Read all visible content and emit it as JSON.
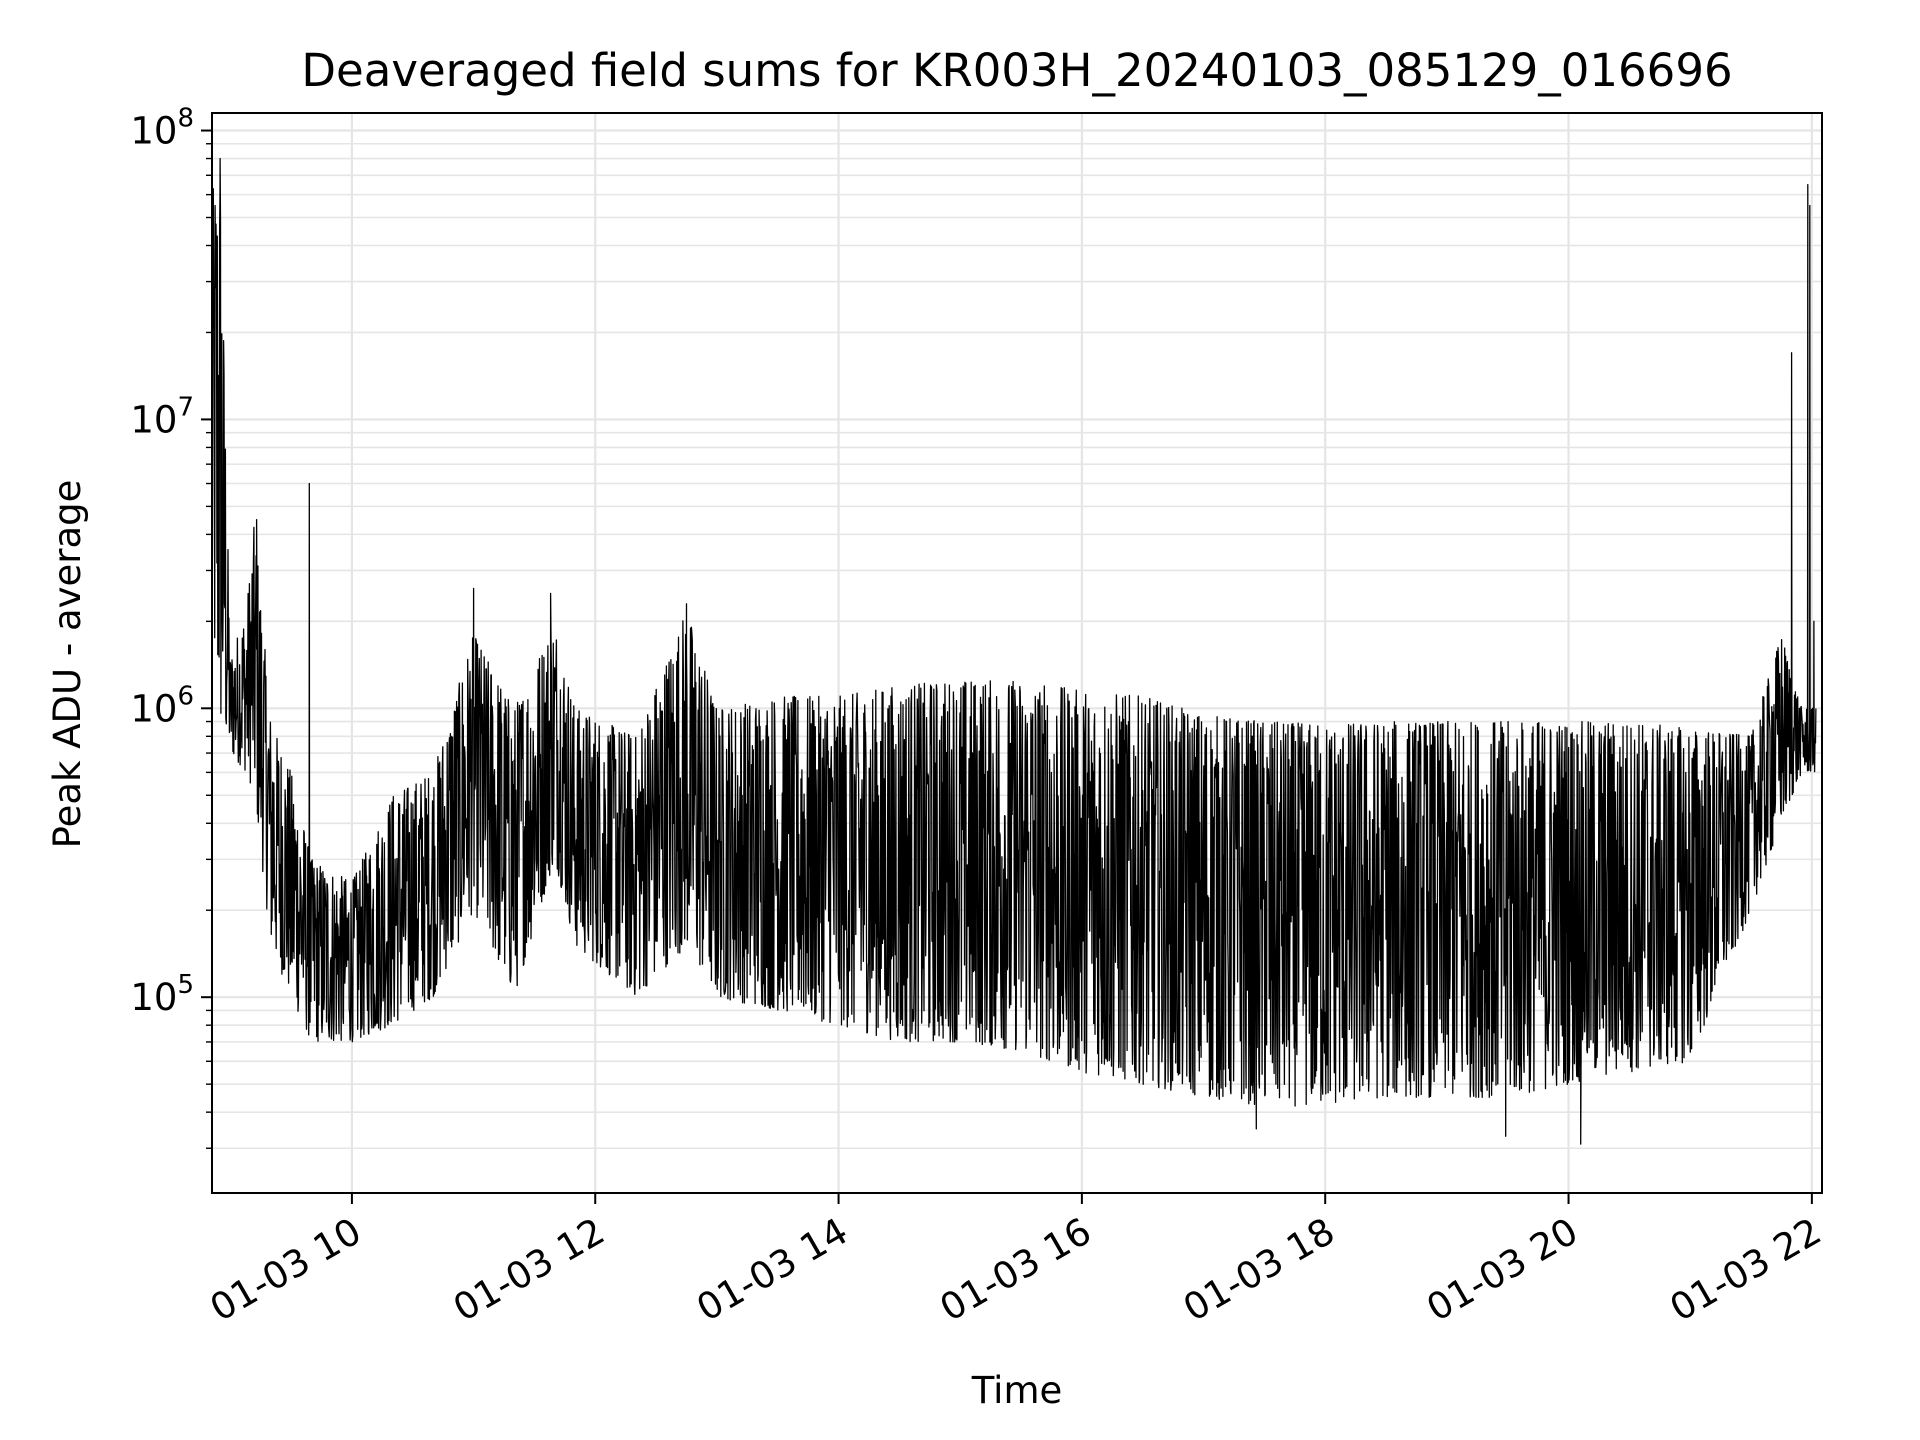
{
  "chart_data": {
    "type": "line",
    "title": "Deaveraged field sums for KR003H_20240103_085129_016696",
    "xlabel": "Time",
    "ylabel": "Peak ADU - average",
    "yscale": "log",
    "xlim": [
      "2024-01-03T08:51",
      "2024-01-03T22:05"
    ],
    "ylim": [
      21000,
      115000000
    ],
    "grid": true,
    "line_color": "#000000",
    "x_ticks": [
      {
        "value": "2024-01-03T10:00",
        "label": "01-03 10"
      },
      {
        "value": "2024-01-03T12:00",
        "label": "01-03 12"
      },
      {
        "value": "2024-01-03T14:00",
        "label": "01-03 14"
      },
      {
        "value": "2024-01-03T16:00",
        "label": "01-03 16"
      },
      {
        "value": "2024-01-03T18:00",
        "label": "01-03 18"
      },
      {
        "value": "2024-01-03T20:00",
        "label": "01-03 20"
      },
      {
        "value": "2024-01-03T22:00",
        "label": "01-03 22"
      }
    ],
    "y_ticks": [
      {
        "value": 100000,
        "base": "10",
        "exp": "5"
      },
      {
        "value": 1000000,
        "base": "10",
        "exp": "6"
      },
      {
        "value": 10000000,
        "base": "10",
        "exp": "7"
      },
      {
        "value": 100000000,
        "base": "10",
        "exp": "8"
      }
    ],
    "series": [
      {
        "envelope": [
          {
            "x": "2024-01-03T08:51",
            "low": 1500000,
            "high": 60000000
          },
          {
            "x": "2024-01-03T08:55",
            "low": 800000,
            "high": 80000000
          },
          {
            "x": "2024-01-03T09:00",
            "low": 700000,
            "high": 1500000
          },
          {
            "x": "2024-01-03T09:08",
            "low": 600000,
            "high": 2200000
          },
          {
            "x": "2024-01-03T09:12",
            "low": 500000,
            "high": 4500000
          },
          {
            "x": "2024-01-03T09:20",
            "low": 150000,
            "high": 900000
          },
          {
            "x": "2024-01-03T09:30",
            "low": 100000,
            "high": 600000
          },
          {
            "x": "2024-01-03T09:40",
            "low": 70000,
            "high": 300000
          },
          {
            "x": "2024-01-03T10:00",
            "low": 70000,
            "high": 250000
          },
          {
            "x": "2024-01-03T10:20",
            "low": 80000,
            "high": 500000
          },
          {
            "x": "2024-01-03T10:40",
            "low": 100000,
            "high": 600000
          },
          {
            "x": "2024-01-03T11:00",
            "low": 200000,
            "high": 1800000
          },
          {
            "x": "2024-01-03T11:20",
            "low": 100000,
            "high": 1000000
          },
          {
            "x": "2024-01-03T11:40",
            "low": 300000,
            "high": 2000000
          },
          {
            "x": "2024-01-03T11:50",
            "low": 150000,
            "high": 1000000
          },
          {
            "x": "2024-01-03T12:20",
            "low": 100000,
            "high": 800000
          },
          {
            "x": "2024-01-03T12:45",
            "low": 150000,
            "high": 2200000
          },
          {
            "x": "2024-01-03T13:00",
            "low": 100000,
            "high": 1000000
          },
          {
            "x": "2024-01-03T13:30",
            "low": 90000,
            "high": 1100000
          },
          {
            "x": "2024-01-03T14:00",
            "low": 80000,
            "high": 1100000
          },
          {
            "x": "2024-01-03T14:30",
            "low": 70000,
            "high": 1200000
          },
          {
            "x": "2024-01-03T15:00",
            "low": 70000,
            "high": 1250000
          },
          {
            "x": "2024-01-03T15:30",
            "low": 65000,
            "high": 1250000
          },
          {
            "x": "2024-01-03T16:00",
            "low": 55000,
            "high": 1150000
          },
          {
            "x": "2024-01-03T16:30",
            "low": 50000,
            "high": 1100000
          },
          {
            "x": "2024-01-03T17:00",
            "low": 45000,
            "high": 950000
          },
          {
            "x": "2024-01-03T17:30",
            "low": 42000,
            "high": 900000
          },
          {
            "x": "2024-01-03T18:00",
            "low": 42000,
            "high": 880000
          },
          {
            "x": "2024-01-03T18:30",
            "low": 45000,
            "high": 900000
          },
          {
            "x": "2024-01-03T19:00",
            "low": 45000,
            "high": 900000
          },
          {
            "x": "2024-01-03T19:30",
            "low": 45000,
            "high": 900000
          },
          {
            "x": "2024-01-03T20:00",
            "low": 50000,
            "high": 900000
          },
          {
            "x": "2024-01-03T20:30",
            "low": 55000,
            "high": 900000
          },
          {
            "x": "2024-01-03T21:00",
            "low": 60000,
            "high": 850000
          },
          {
            "x": "2024-01-03T21:30",
            "low": 200000,
            "high": 800000
          },
          {
            "x": "2024-01-03T21:45",
            "low": 400000,
            "high": 1800000
          },
          {
            "x": "2024-01-03T21:55",
            "low": 600000,
            "high": 1000000
          },
          {
            "x": "2024-01-03T22:02",
            "low": 600000,
            "high": 1000000
          }
        ],
        "spikes": [
          {
            "x": "2024-01-03T08:51",
            "y": 60000000
          },
          {
            "x": "2024-01-03T08:55",
            "y": 80000000
          },
          {
            "x": "2024-01-03T09:13",
            "y": 4500000
          },
          {
            "x": "2024-01-03T09:39",
            "y": 6000000
          },
          {
            "x": "2024-01-03T11:00",
            "y": 2600000
          },
          {
            "x": "2024-01-03T11:38",
            "y": 2500000
          },
          {
            "x": "2024-01-03T12:45",
            "y": 2300000
          },
          {
            "x": "2024-01-03T17:26",
            "y": 35000
          },
          {
            "x": "2024-01-03T19:29",
            "y": 33000
          },
          {
            "x": "2024-01-03T20:06",
            "y": 31000
          },
          {
            "x": "2024-01-03T21:50",
            "y": 17000000
          },
          {
            "x": "2024-01-03T21:58",
            "y": 65000000
          },
          {
            "x": "2024-01-03T21:59",
            "y": 55000000
          },
          {
            "x": "2024-01-03T22:01",
            "y": 2000000
          }
        ]
      }
    ]
  }
}
